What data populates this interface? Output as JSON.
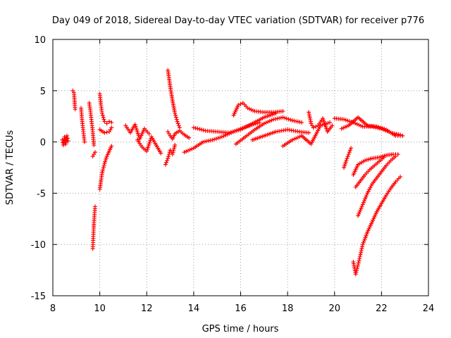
{
  "chart_data": {
    "type": "scatter",
    "title": "Day 049 of 2018, Sidereal Day-to-day VTEC variation (SDTVAR) for receiver p776",
    "xlabel": "GPS time / hours",
    "ylabel": "SDTVAR / TECUs",
    "xlim": [
      8,
      24
    ],
    "ylim": [
      -15,
      10
    ],
    "xticks": [
      8,
      10,
      12,
      14,
      16,
      18,
      20,
      22,
      24
    ],
    "yticks": [
      -15,
      -10,
      -5,
      0,
      5,
      10
    ],
    "grid": true,
    "marker": "+",
    "color": "#ff0000",
    "series": [
      {
        "name": "s1",
        "x": [
          8.4,
          8.45,
          8.5,
          8.55,
          8.6,
          8.65
        ],
        "y": [
          0.2,
          -0.3,
          0.5,
          -0.2,
          0.6,
          0.1
        ]
      },
      {
        "name": "s2",
        "x": [
          8.85,
          8.9,
          8.95
        ],
        "y": [
          5.0,
          4.8,
          3.2
        ]
      },
      {
        "name": "s3",
        "x": [
          9.2,
          9.25,
          9.3,
          9.35
        ],
        "y": [
          3.3,
          2.0,
          1.0,
          0.0
        ]
      },
      {
        "name": "s4",
        "x": [
          9.55,
          9.6,
          9.65,
          9.7,
          9.75
        ],
        "y": [
          3.8,
          3.0,
          2.0,
          1.0,
          -0.3
        ]
      },
      {
        "name": "s5",
        "x": [
          9.7,
          9.72,
          9.74,
          9.76,
          9.78,
          9.8
        ],
        "y": [
          -10.4,
          -9.4,
          -8.4,
          -7.5,
          -6.9,
          -6.3
        ]
      },
      {
        "name": "s6",
        "x": [
          9.7,
          9.75,
          9.8
        ],
        "y": [
          -1.4,
          -1.2,
          -1.0
        ]
      },
      {
        "name": "s7",
        "x": [
          10.0,
          10.05,
          10.1,
          10.15,
          10.2,
          10.3,
          10.4,
          10.5
        ],
        "y": [
          4.7,
          3.6,
          2.8,
          2.4,
          2.0,
          1.8,
          2.0,
          1.9
        ]
      },
      {
        "name": "s8",
        "x": [
          10.0,
          10.1,
          10.2,
          10.3,
          10.4,
          10.5
        ],
        "y": [
          -4.6,
          -3.0,
          -2.1,
          -1.4,
          -0.9,
          -0.4
        ]
      },
      {
        "name": "s9",
        "x": [
          10.0,
          10.2,
          10.4,
          10.5
        ],
        "y": [
          1.2,
          0.9,
          1.0,
          1.4
        ]
      },
      {
        "name": "s10",
        "x": [
          11.1,
          11.3,
          11.5,
          11.7,
          11.9,
          12.1
        ],
        "y": [
          1.6,
          0.9,
          1.7,
          0.3,
          1.3,
          0.8
        ]
      },
      {
        "name": "s11",
        "x": [
          11.6,
          11.8,
          12.0,
          12.2,
          12.4,
          12.6
        ],
        "y": [
          0.2,
          -0.5,
          -0.9,
          0.5,
          -0.3,
          -1.1
        ]
      },
      {
        "name": "s12",
        "x": [
          12.9,
          13.0,
          13.1,
          13.2,
          13.3,
          13.4
        ],
        "y": [
          7.0,
          5.4,
          4.0,
          2.8,
          2.0,
          1.4
        ]
      },
      {
        "name": "s13",
        "x": [
          12.9,
          13.0,
          13.1,
          13.2,
          13.4,
          13.6,
          13.8
        ],
        "y": [
          1.0,
          0.6,
          0.3,
          0.8,
          1.1,
          0.7,
          0.4
        ]
      },
      {
        "name": "s14",
        "x": [
          12.8,
          12.9,
          13.0,
          13.1,
          13.2
        ],
        "y": [
          -2.2,
          -1.6,
          -0.8,
          -1.2,
          -0.3
        ]
      },
      {
        "name": "s15",
        "x": [
          13.6,
          14.0,
          14.4,
          14.8,
          15.2,
          15.6,
          16.0,
          16.4,
          16.8
        ],
        "y": [
          -1.0,
          -0.6,
          0.0,
          0.2,
          0.5,
          0.9,
          1.3,
          1.6,
          1.9
        ]
      },
      {
        "name": "s16",
        "x": [
          14.0,
          14.5,
          15.0,
          15.5,
          16.0,
          16.5,
          17.0,
          17.5
        ],
        "y": [
          1.4,
          1.1,
          1.0,
          0.9,
          1.2,
          1.8,
          2.4,
          2.8
        ]
      },
      {
        "name": "s17",
        "x": [
          15.7,
          15.9,
          16.1,
          16.3,
          16.6,
          17.0,
          17.4,
          17.8
        ],
        "y": [
          2.6,
          3.6,
          3.8,
          3.3,
          3.0,
          2.9,
          2.9,
          3.0
        ]
      },
      {
        "name": "s18",
        "x": [
          15.8,
          16.2,
          16.6,
          17.0,
          17.4,
          17.8,
          18.2,
          18.6
        ],
        "y": [
          -0.2,
          0.5,
          1.2,
          1.8,
          2.2,
          2.4,
          2.1,
          1.9
        ]
      },
      {
        "name": "s19",
        "x": [
          16.5,
          17.0,
          17.5,
          18.0,
          18.5,
          18.9
        ],
        "y": [
          0.2,
          0.6,
          1.0,
          1.2,
          1.0,
          0.9
        ]
      },
      {
        "name": "s20",
        "x": [
          17.8,
          18.2,
          18.6,
          19.0,
          19.4,
          19.8
        ],
        "y": [
          -0.4,
          0.2,
          0.6,
          -0.2,
          1.6,
          1.9
        ]
      },
      {
        "name": "s21",
        "x": [
          18.9,
          19.0,
          19.1,
          19.3,
          19.5,
          19.7,
          19.9
        ],
        "y": [
          2.9,
          1.8,
          1.4,
          1.6,
          2.3,
          1.0,
          1.6
        ]
      },
      {
        "name": "s22",
        "x": [
          20.0,
          20.4,
          20.8,
          21.2,
          21.6,
          22.0,
          22.4,
          22.8
        ],
        "y": [
          2.3,
          2.2,
          1.9,
          1.5,
          1.5,
          1.3,
          0.9,
          0.7
        ]
      },
      {
        "name": "s23",
        "x": [
          20.3,
          20.6,
          21.0,
          21.4,
          21.8,
          22.2,
          22.6,
          22.9
        ],
        "y": [
          1.3,
          1.6,
          2.4,
          1.6,
          1.5,
          1.2,
          0.6,
          0.6
        ]
      },
      {
        "name": "s24",
        "x": [
          20.4,
          20.5,
          20.6,
          20.7
        ],
        "y": [
          -2.5,
          -1.8,
          -1.2,
          -0.6
        ]
      },
      {
        "name": "s25",
        "x": [
          20.8,
          21.0,
          21.3,
          21.6,
          21.9,
          22.2,
          22.5,
          22.7
        ],
        "y": [
          -3.2,
          -2.2,
          -1.8,
          -1.6,
          -1.5,
          -1.3,
          -1.2,
          -1.2
        ]
      },
      {
        "name": "s26",
        "x": [
          20.9,
          21.1,
          21.3,
          21.5,
          21.7,
          21.9,
          22.1
        ],
        "y": [
          -4.4,
          -3.8,
          -3.2,
          -2.7,
          -2.3,
          -1.9,
          -1.5
        ]
      },
      {
        "name": "s27",
        "x": [
          21.0,
          21.2,
          21.4,
          21.6,
          21.8,
          22.0,
          22.2,
          22.4,
          22.6
        ],
        "y": [
          -7.2,
          -6.1,
          -5.0,
          -4.1,
          -3.5,
          -2.9,
          -2.3,
          -1.8,
          -1.4
        ]
      },
      {
        "name": "s28",
        "x": [
          20.8,
          20.9,
          21.0,
          21.1,
          21.2,
          21.4,
          21.6,
          21.8,
          22.0,
          22.2,
          22.4,
          22.6,
          22.8
        ],
        "y": [
          -11.7,
          -12.9,
          -12.0,
          -11.0,
          -10.0,
          -8.8,
          -7.8,
          -6.8,
          -6.0,
          -5.2,
          -4.5,
          -3.9,
          -3.4
        ]
      }
    ]
  }
}
